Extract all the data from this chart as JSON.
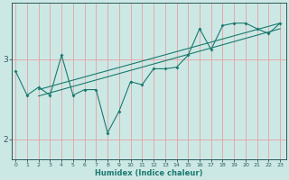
{
  "xlabel": "Humidex (Indice chaleur)",
  "bg_color": "#cce8e5",
  "line_color": "#1a7a6e",
  "grid_color": "#e8a0a0",
  "x_ticks": [
    0,
    1,
    2,
    3,
    4,
    5,
    6,
    7,
    8,
    9,
    10,
    11,
    12,
    13,
    14,
    15,
    16,
    17,
    18,
    19,
    20,
    21,
    22,
    23
  ],
  "y_ticks": [
    2,
    3
  ],
  "ylim": [
    1.75,
    3.7
  ],
  "xlim": [
    -0.3,
    23.5
  ],
  "series1_x": [
    0,
    1,
    2,
    3,
    4,
    5,
    6,
    7,
    8,
    9,
    10,
    11,
    12,
    13,
    14,
    15,
    16,
    17,
    18,
    19,
    20,
    21,
    22,
    23
  ],
  "series1_y": [
    2.85,
    2.55,
    2.65,
    2.55,
    3.05,
    2.55,
    2.62,
    2.62,
    2.08,
    2.35,
    2.72,
    2.68,
    2.88,
    2.88,
    2.9,
    3.05,
    3.38,
    3.12,
    3.42,
    3.45,
    3.45,
    3.38,
    3.32,
    3.45
  ],
  "series2_x": [
    2,
    23
  ],
  "series2_y": [
    2.62,
    3.45
  ],
  "series3_x": [
    2,
    23
  ],
  "series3_y": [
    2.54,
    3.38
  ]
}
